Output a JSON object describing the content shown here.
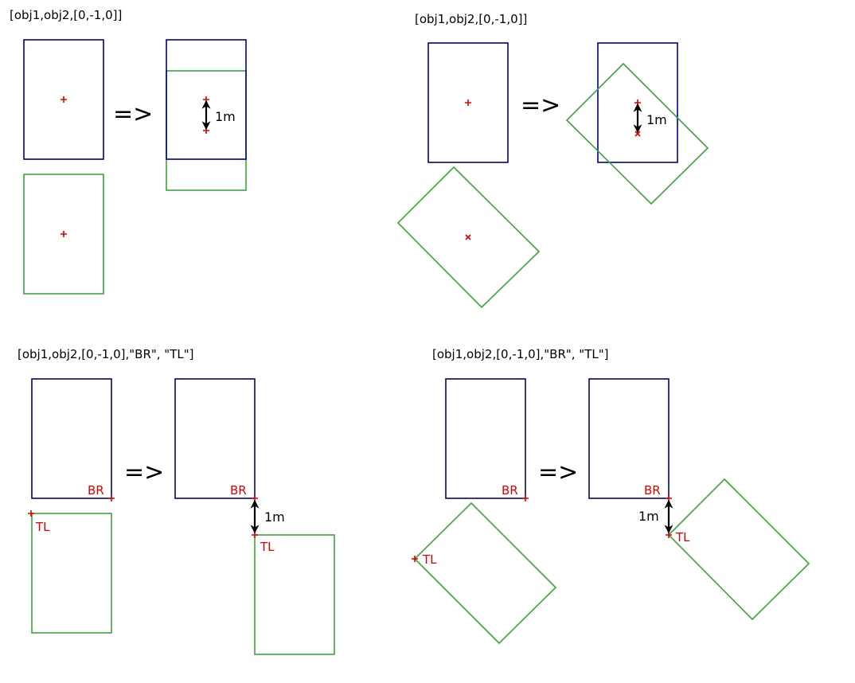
{
  "colors": {
    "obj1": "#00008b",
    "obj2": "#3aa63a",
    "marker": "#e00000",
    "arrow": "#000000"
  },
  "panels": {
    "top_left": {
      "caption": "[obj1,obj2,[0,-1,0]]",
      "arrow": "=>",
      "distance": "1m"
    },
    "top_right": {
      "caption": "[obj1,obj2,[0,-1,0]]",
      "arrow": "=>",
      "distance": "1m"
    },
    "bottom_left": {
      "caption": "[obj1,obj2,[0,-1,0],\"BR\", \"TL\"]",
      "arrow": "=>",
      "distance": "1m",
      "corner1": "BR",
      "corner2": "TL"
    },
    "bottom_right": {
      "caption": "[obj1,obj2,[0,-1,0],\"BR\", \"TL\"]",
      "arrow": "=>",
      "distance": "1m",
      "corner1": "BR",
      "corner2": "TL"
    }
  }
}
